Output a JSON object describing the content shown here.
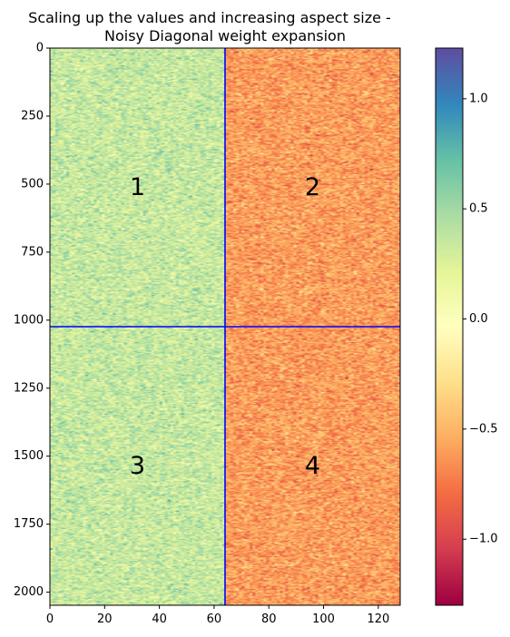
{
  "chart_data": {
    "type": "heatmap",
    "title": "Scaling up the values and increasing aspect size -\nNoisy Diagonal weight expansion",
    "xlabel": "",
    "ylabel": "",
    "xlim": [
      0,
      128
    ],
    "ylim": [
      2048,
      0
    ],
    "x_ticks": [
      0,
      20,
      40,
      60,
      80,
      100,
      120
    ],
    "y_ticks": [
      0,
      250,
      500,
      750,
      1000,
      1250,
      1500,
      1750,
      2000
    ],
    "colormap": "Spectral",
    "colorbar": {
      "min": -1.3,
      "max": 1.23,
      "ticks": [
        1.0,
        0.5,
        0.0,
        -0.5,
        -1.0
      ],
      "tick_labels": [
        "1.0",
        "0.5",
        "0.0",
        "−0.5",
        "−1.0"
      ]
    },
    "quadrants": [
      {
        "label": "1",
        "cols": [
          0,
          64
        ],
        "rows": [
          0,
          1024
        ],
        "mean": 0.35,
        "noise": 0.15
      },
      {
        "label": "2",
        "cols": [
          64,
          128
        ],
        "rows": [
          0,
          1024
        ],
        "mean": -0.6,
        "noise": 0.15
      },
      {
        "label": "3",
        "cols": [
          0,
          64
        ],
        "rows": [
          1024,
          2048
        ],
        "mean": 0.35,
        "noise": 0.15
      },
      {
        "label": "4",
        "cols": [
          64,
          128
        ],
        "rows": [
          1024,
          2048
        ],
        "mean": -0.6,
        "noise": 0.15
      }
    ],
    "divider_lines": {
      "vertical_x": 64,
      "horizontal_y": 1024,
      "color": "#0000ff"
    },
    "grid": false
  }
}
